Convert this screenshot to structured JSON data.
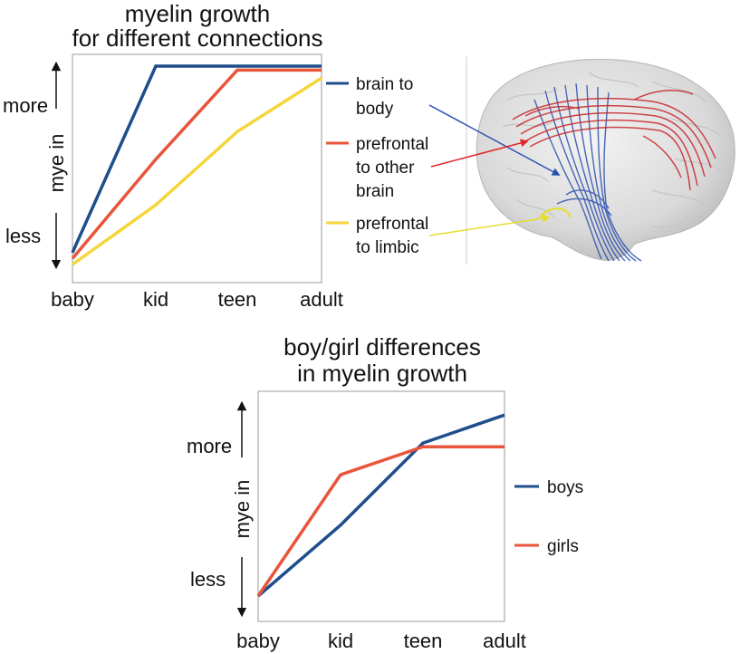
{
  "chart_data": [
    {
      "type": "line",
      "title": "myelin growth for different connections",
      "title_lines": [
        "myelin growth",
        "for different connections"
      ],
      "ylabel": "mye in",
      "y_high_label": "more",
      "y_low_label": "less",
      "categories": [
        "baby",
        "kid",
        "teen",
        "adult"
      ],
      "ylim": [
        0,
        100
      ],
      "grid": false,
      "legend_position": "right",
      "series": [
        {
          "name": "brain to body",
          "name_lines": [
            "brain to",
            "body"
          ],
          "color": "#1f4e8c",
          "values": [
            6,
            100,
            100,
            100
          ]
        },
        {
          "name": "prefrontal to other brain",
          "name_lines": [
            "prefrontal",
            "to other",
            "brain"
          ],
          "color": "#e8553a",
          "values": [
            3,
            53,
            98,
            98
          ]
        },
        {
          "name": "prefrontal to limbic",
          "name_lines": [
            "prefrontal",
            "to limbic"
          ],
          "color": "#f5d63a",
          "values": [
            0,
            30,
            67,
            94
          ]
        }
      ]
    },
    {
      "type": "line",
      "title": "boy/girl differences in myelin growth",
      "title_lines": [
        "boy/girl differences",
        "in myelin growth"
      ],
      "ylabel": "mye in",
      "y_high_label": "more",
      "y_low_label": "less",
      "categories": [
        "baby",
        "kid",
        "teen",
        "adult"
      ],
      "ylim": [
        0,
        100
      ],
      "grid": false,
      "legend_position": "right",
      "series": [
        {
          "name": "boys",
          "name_lines": [
            "boys"
          ],
          "color": "#1f4e8c",
          "values": [
            0,
            38,
            82,
            97
          ]
        },
        {
          "name": "girls",
          "name_lines": [
            "girls"
          ],
          "color": "#e8553a",
          "values": [
            0,
            65,
            80,
            80
          ]
        }
      ]
    }
  ],
  "image": {
    "description_icon": "brain-tractography-icon",
    "colors": {
      "body": "#1f4e8c",
      "prefrontal": "#c8262b",
      "limbic": "#e8e03a"
    }
  }
}
